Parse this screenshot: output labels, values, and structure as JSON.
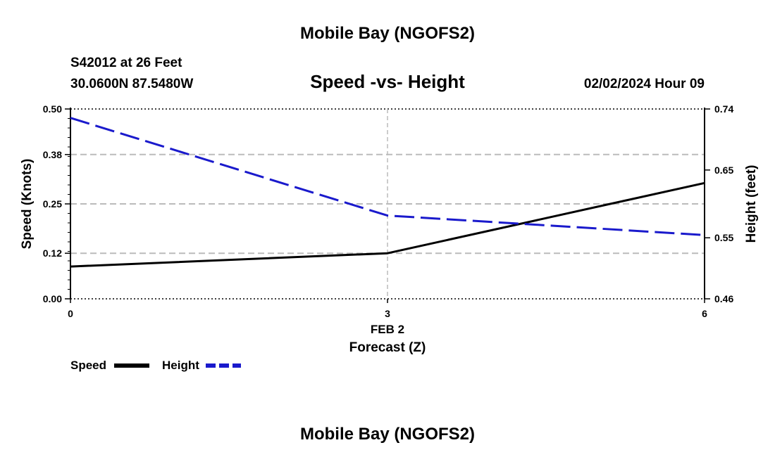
{
  "page": {
    "title": "Mobile Bay (NGOFS2)",
    "station": "S42012 at 26 Feet",
    "coords": "30.0600N  87.5480W",
    "datetime": "02/02/2024 Hour 09",
    "footer_title": "Mobile Bay (NGOFS2)"
  },
  "colors": {
    "speed": "#000000",
    "height": "#1a1acc",
    "grid": "#bbbbbb"
  },
  "chart_data": {
    "type": "line",
    "title": "Speed -vs- Height",
    "xlabel": "Forecast (Z)",
    "xdate_label": "FEB 2",
    "ylabel": "Speed (Knots)",
    "y2label": "Height (feet)",
    "x": [
      0,
      3,
      6
    ],
    "xlim": [
      0,
      6
    ],
    "xticks": [
      "0",
      "3",
      "6"
    ],
    "ylim": [
      0,
      0.5
    ],
    "yticks": [
      "0.00",
      "0.12",
      "0.25",
      "0.38",
      "0.50"
    ],
    "y2lim": [
      0.46,
      0.74
    ],
    "y2ticks": [
      "0.46",
      "0.55",
      "0.65",
      "0.74"
    ],
    "grid": true,
    "legend_position": "bottom-left",
    "series": [
      {
        "name": "Speed",
        "axis": "left",
        "style": "solid",
        "values": [
          0.085,
          0.12,
          0.305
        ]
      },
      {
        "name": "Height",
        "axis": "right",
        "style": "dashed",
        "values": [
          0.7268,
          0.5828,
          0.554
        ]
      }
    ]
  }
}
